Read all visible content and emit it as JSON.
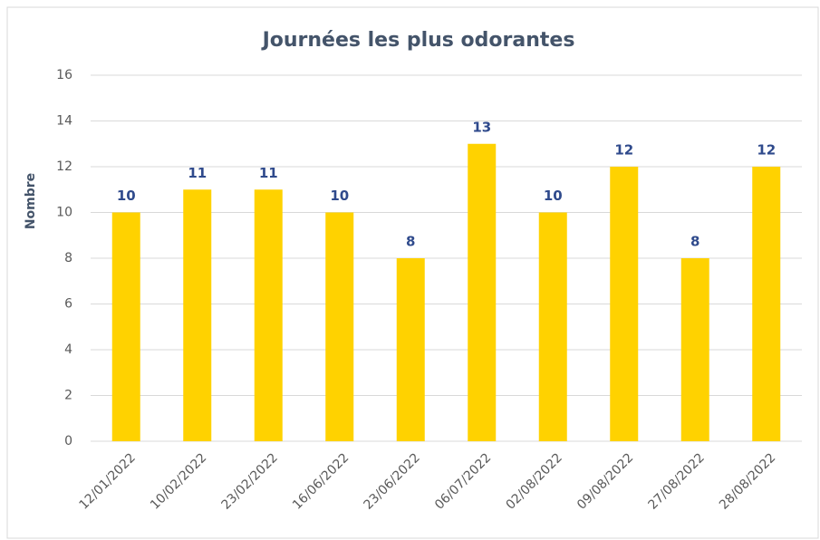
{
  "chart_data": {
    "type": "bar",
    "title": "Journées les plus odorantes",
    "y_label": "Nombre",
    "categories": [
      "12/01/2022",
      "10/02/2022",
      "23/02/2022",
      "16/06/2022",
      "23/06/2022",
      "06/07/2022",
      "02/08/2022",
      "09/08/2022",
      "27/08/2022",
      "28/08/2022"
    ],
    "values": [
      10,
      11,
      11,
      10,
      8,
      13,
      10,
      12,
      8,
      12
    ],
    "color": "#ffd200",
    "ylim": [
      0,
      16
    ],
    "yticks": [
      0,
      2,
      4,
      6,
      8,
      10,
      12,
      14,
      16
    ],
    "grid": true,
    "data_labels": true
  }
}
